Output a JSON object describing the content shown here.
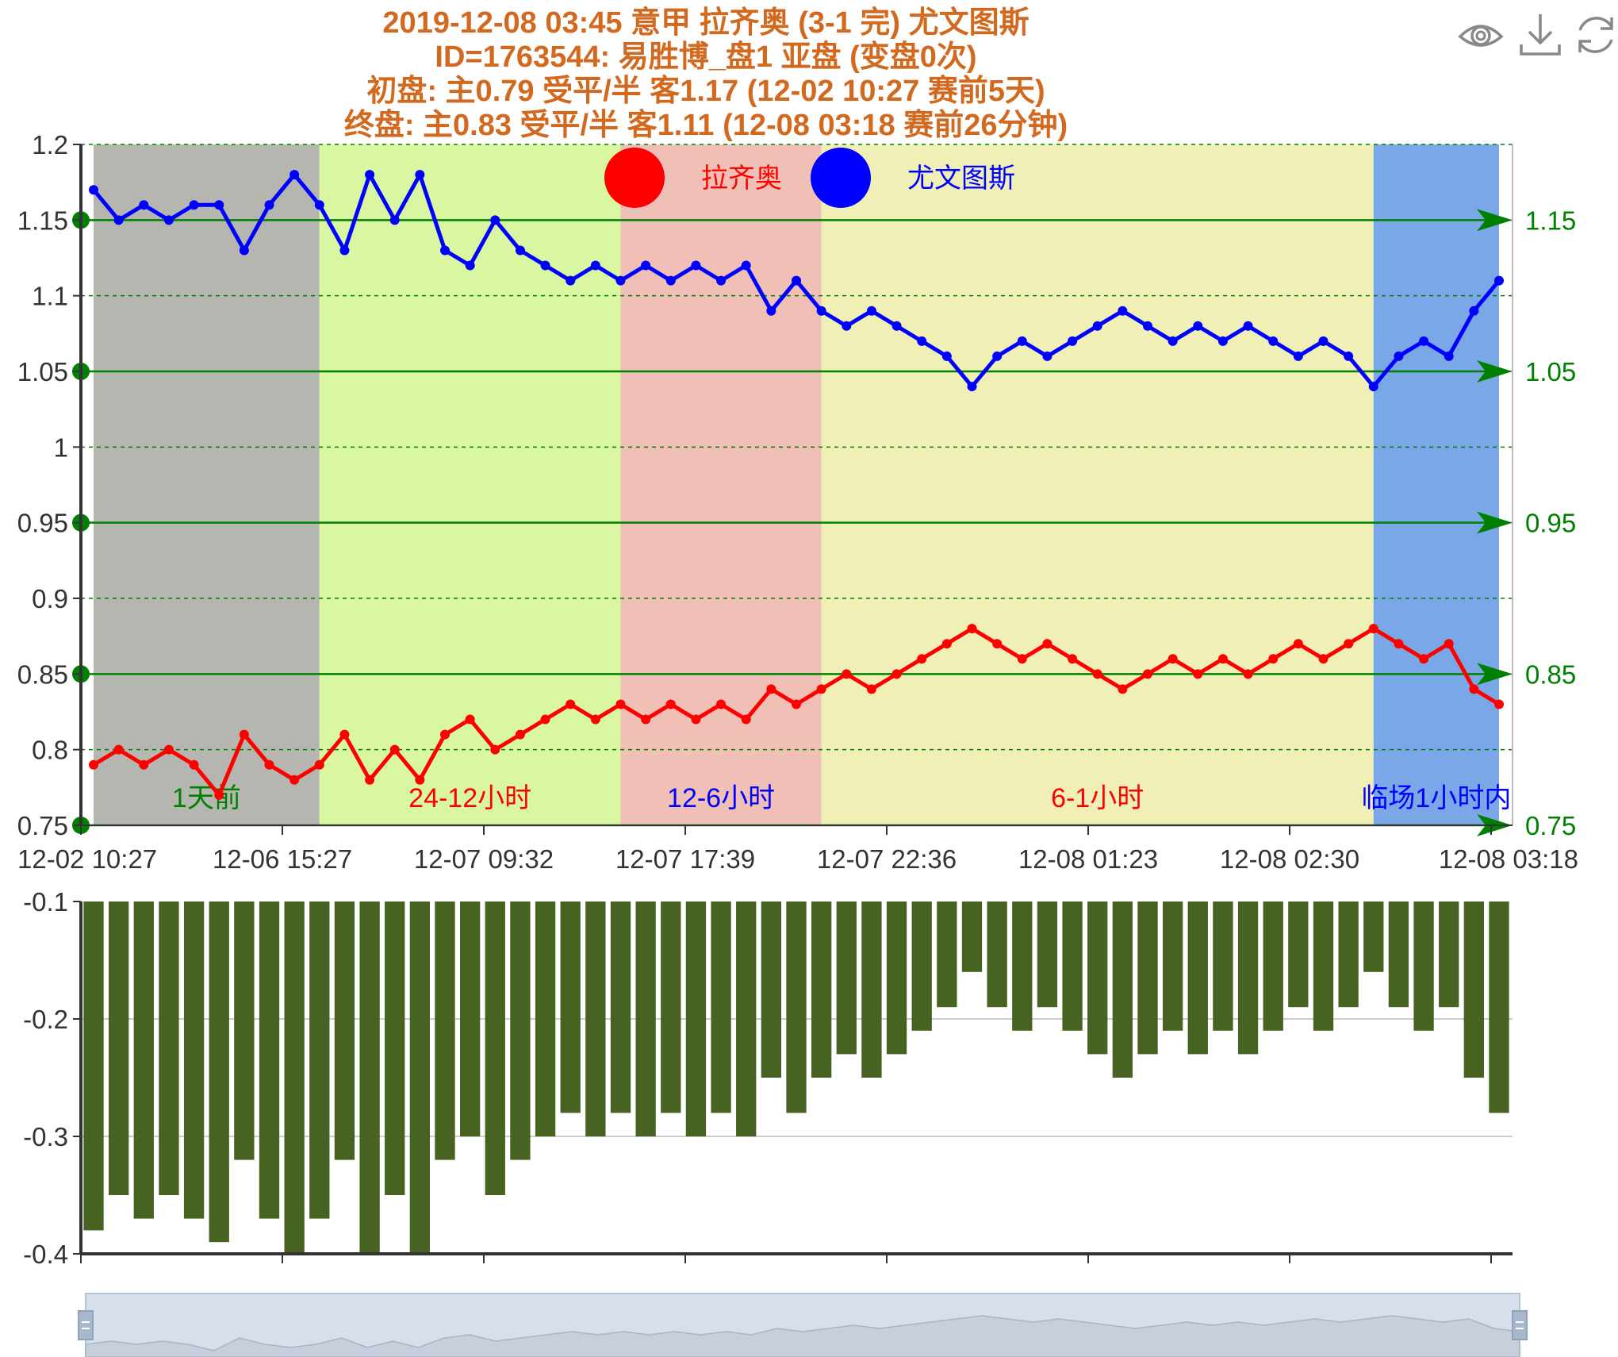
{
  "title_lines": [
    "2019-12-08 03:45 意甲 拉齐奥 (3-1 完) 尤文图斯",
    "ID=1763544: 易胜博_盘1 亚盘 (变盘0次)",
    "初盘:    主0.79   受平/半  客1.17     (12-02 10:27 赛前5天)",
    "终盘:    主0.83   受平/半  客1.11     (12-08 03:18 赛前26分钟)"
  ],
  "toolbox": {
    "icons": [
      "eye-icon",
      "download-icon",
      "refresh-icon"
    ]
  },
  "colors": {
    "title": "#d2691e",
    "home": "#ff0000",
    "away": "#0000ff",
    "bars": "#466321",
    "markline": "#008000",
    "zones": [
      "#b6b6b0",
      "#d9f7a1",
      "#f0bfb6",
      "#f0f0b6",
      "#7aa7e7"
    ]
  },
  "chart_data": [
    {
      "type": "line",
      "ylim": [
        0.75,
        1.2
      ],
      "y_ticks": [
        "0.75",
        "0.8",
        "0.85",
        "0.9",
        "0.95",
        "1",
        "1.05",
        "1.1",
        "1.15",
        "1.2"
      ],
      "x_tick_labels": [
        "12-02 10:27",
        "12-06 15:27",
        "12-07 09:32",
        "12-07 17:39",
        "12-07 22:36",
        "12-08 01:23",
        "12-08 02:30",
        "12-08 03:18"
      ],
      "legend": [
        {
          "name": "拉齐奥",
          "color": "#ff0000"
        },
        {
          "name": "尤文图斯",
          "color": "#0000ff"
        }
      ],
      "series": [
        {
          "name": "拉齐奥",
          "color": "#ff0000",
          "values": [
            0.79,
            0.8,
            0.79,
            0.8,
            0.79,
            0.77,
            0.81,
            0.79,
            0.78,
            0.79,
            0.81,
            0.78,
            0.8,
            0.78,
            0.81,
            0.82,
            0.8,
            0.81,
            0.82,
            0.83,
            0.82,
            0.83,
            0.82,
            0.83,
            0.82,
            0.83,
            0.82,
            0.84,
            0.83,
            0.84,
            0.85,
            0.84,
            0.85,
            0.86,
            0.87,
            0.88,
            0.87,
            0.86,
            0.87,
            0.86,
            0.85,
            0.84,
            0.85,
            0.86,
            0.85,
            0.86,
            0.85,
            0.86,
            0.87,
            0.86,
            0.87,
            0.88,
            0.87,
            0.86,
            0.87,
            0.84,
            0.83
          ]
        },
        {
          "name": "尤文图斯",
          "color": "#0000ff",
          "values": [
            1.17,
            1.15,
            1.16,
            1.15,
            1.16,
            1.16,
            1.13,
            1.16,
            1.18,
            1.16,
            1.13,
            1.18,
            1.15,
            1.18,
            1.13,
            1.12,
            1.15,
            1.13,
            1.12,
            1.11,
            1.12,
            1.11,
            1.12,
            1.11,
            1.12,
            1.11,
            1.12,
            1.09,
            1.11,
            1.09,
            1.08,
            1.09,
            1.08,
            1.07,
            1.06,
            1.04,
            1.06,
            1.07,
            1.06,
            1.07,
            1.08,
            1.09,
            1.08,
            1.07,
            1.08,
            1.07,
            1.08,
            1.07,
            1.06,
            1.07,
            1.06,
            1.04,
            1.06,
            1.07,
            1.06,
            1.09,
            1.11
          ]
        }
      ],
      "mark_lines": [
        {
          "value": 0.75,
          "label": "0.75"
        },
        {
          "value": 0.85,
          "label": "0.85"
        },
        {
          "value": 0.95,
          "label": "0.95"
        },
        {
          "value": 1.05,
          "label": "1.05"
        },
        {
          "value": 1.15,
          "label": "1.15"
        }
      ],
      "zones": [
        {
          "label": "1天前",
          "from": 0,
          "to": 9,
          "label_color": "#008000"
        },
        {
          "label": "24-12小时",
          "from": 9,
          "to": 21,
          "label_color": "#ff0000"
        },
        {
          "label": "12-6小时",
          "from": 21,
          "to": 29,
          "label_color": "#0000ff"
        },
        {
          "label": "6-1小时",
          "from": 29,
          "to": 51,
          "label_color": "#ff0000"
        },
        {
          "label": "临场1小时内",
          "from": 51,
          "to": 56,
          "label_color": "#0000ff"
        }
      ]
    },
    {
      "type": "bar",
      "ylim": [
        -0.4,
        -0.1
      ],
      "y_ticks": [
        "-0.1",
        "-0.2",
        "-0.3",
        "-0.4"
      ],
      "values": [
        -0.38,
        -0.35,
        -0.37,
        -0.35,
        -0.37,
        -0.39,
        -0.32,
        -0.37,
        -0.4,
        -0.37,
        -0.32,
        -0.4,
        -0.35,
        -0.4,
        -0.32,
        -0.3,
        -0.35,
        -0.32,
        -0.3,
        -0.28,
        -0.3,
        -0.28,
        -0.3,
        -0.28,
        -0.3,
        -0.28,
        -0.3,
        -0.25,
        -0.28,
        -0.25,
        -0.23,
        -0.25,
        -0.23,
        -0.21,
        -0.19,
        -0.16,
        -0.19,
        -0.21,
        -0.19,
        -0.21,
        -0.23,
        -0.25,
        -0.23,
        -0.21,
        -0.23,
        -0.21,
        -0.23,
        -0.21,
        -0.19,
        -0.21,
        -0.19,
        -0.16,
        -0.19,
        -0.21,
        -0.19,
        -0.25,
        -0.28
      ]
    }
  ]
}
